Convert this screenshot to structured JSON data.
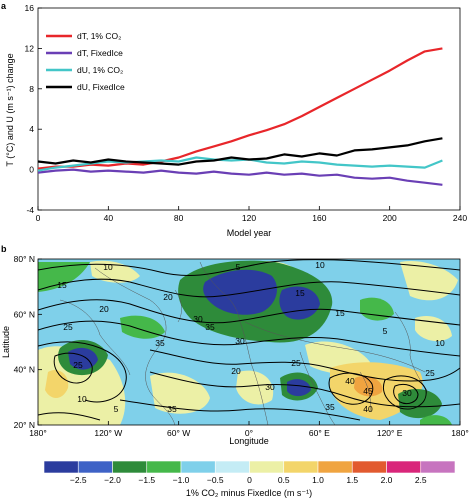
{
  "panel_a": {
    "label": "a",
    "ylabel": "T (°C) and U (m s⁻¹) change",
    "xlabel": "Model year"
  },
  "panel_b": {
    "label": "b",
    "ylabel": "Latitude",
    "xlabel": "Longitude"
  },
  "colorbar": {
    "label": "1% CO₂ minus FixedIce (m s⁻¹)",
    "ticks": [
      "−2.5",
      "−2.0",
      "−1.5",
      "−1.0",
      "−0.5",
      "0",
      "0.5",
      "1.0",
      "1.5",
      "2.0",
      "2.5"
    ],
    "colors": [
      "#2b3c9e",
      "#3e62c6",
      "#2e8b3a",
      "#45b84a",
      "#7fd0ea",
      "#c4ecf5",
      "#ecf0a6",
      "#f3d56a",
      "#f0a440",
      "#e25a2f",
      "#d9267a",
      "#c774bf"
    ]
  },
  "contour_labels": [
    "5",
    "10",
    "10",
    "15",
    "20",
    "15",
    "20",
    "25",
    "30",
    "35",
    "30",
    "35",
    "15",
    "20",
    "25",
    "10",
    "5",
    "5",
    "10",
    "35",
    "25",
    "30",
    "25",
    "40",
    "45",
    "30",
    "35",
    "40",
    "35",
    "30",
    "25",
    "20",
    "15",
    "10",
    "15",
    "20",
    "25",
    "15"
  ],
  "chart_data": [
    {
      "type": "line",
      "panel": "a",
      "xlabel": "Model year",
      "ylabel": "T (°C) and U (m s⁻¹) change",
      "xlim": [
        0,
        240
      ],
      "ylim": [
        -4,
        16
      ],
      "xticks": [
        0,
        40,
        80,
        120,
        160,
        200,
        240
      ],
      "yticks": [
        -4,
        0,
        4,
        8,
        12,
        16
      ],
      "legend_position": "top-left",
      "x": [
        0,
        10,
        20,
        30,
        40,
        50,
        60,
        70,
        80,
        90,
        100,
        110,
        120,
        130,
        140,
        150,
        160,
        170,
        180,
        190,
        200,
        210,
        220,
        230
      ],
      "series": [
        {
          "name": "dT, 1% CO₂",
          "color": "#e8262a",
          "values": [
            0.1,
            0.3,
            0.3,
            0.5,
            0.4,
            0.6,
            0.5,
            0.8,
            1.2,
            1.8,
            2.3,
            2.8,
            3.4,
            3.9,
            4.5,
            5.3,
            6.2,
            7.1,
            8.0,
            8.9,
            9.8,
            10.8,
            11.7,
            12.0
          ]
        },
        {
          "name": "dT, FixedIce",
          "color": "#6a3fb5",
          "values": [
            -0.3,
            -0.1,
            0.0,
            -0.2,
            -0.1,
            -0.2,
            -0.3,
            -0.1,
            -0.3,
            -0.4,
            -0.2,
            -0.4,
            -0.5,
            -0.3,
            -0.5,
            -0.4,
            -0.6,
            -0.5,
            -0.8,
            -0.9,
            -0.8,
            -1.1,
            -1.3,
            -1.5
          ]
        },
        {
          "name": "dU, 1% CO₂",
          "color": "#43c6c8",
          "values": [
            -0.1,
            0.2,
            0.4,
            0.6,
            0.8,
            0.7,
            0.8,
            0.9,
            0.8,
            1.2,
            1.0,
            0.9,
            1.0,
            0.7,
            0.6,
            0.8,
            0.7,
            0.5,
            0.4,
            0.3,
            0.4,
            0.3,
            0.2,
            0.9
          ]
        },
        {
          "name": "dU, FixedIce",
          "color": "#000000",
          "values": [
            0.8,
            0.6,
            0.9,
            0.7,
            1.0,
            0.8,
            0.7,
            0.6,
            0.5,
            0.8,
            0.9,
            1.2,
            1.0,
            1.1,
            1.5,
            1.3,
            1.6,
            1.4,
            1.9,
            2.0,
            2.2,
            2.4,
            2.8,
            3.1
          ]
        }
      ]
    },
    {
      "type": "heatmap",
      "panel": "b",
      "xlabel": "Longitude",
      "ylabel": "Latitude",
      "xlim": [
        -180,
        180
      ],
      "ylim": [
        20,
        80
      ],
      "xtick_labels": [
        "180°",
        "120° W",
        "60° W",
        "0°",
        "60° E",
        "120° E",
        "180°"
      ],
      "ytick_labels": [
        "20° N",
        "40° N",
        "60° N",
        "80° N"
      ],
      "colorbar_label": "1% CO₂ minus FixedIce (m s⁻¹)",
      "colorbar_ticks": [
        -2.5,
        -2.0,
        -1.5,
        -1.0,
        -0.5,
        0,
        0.5,
        1.0,
        1.5,
        2.0,
        2.5
      ]
    }
  ]
}
